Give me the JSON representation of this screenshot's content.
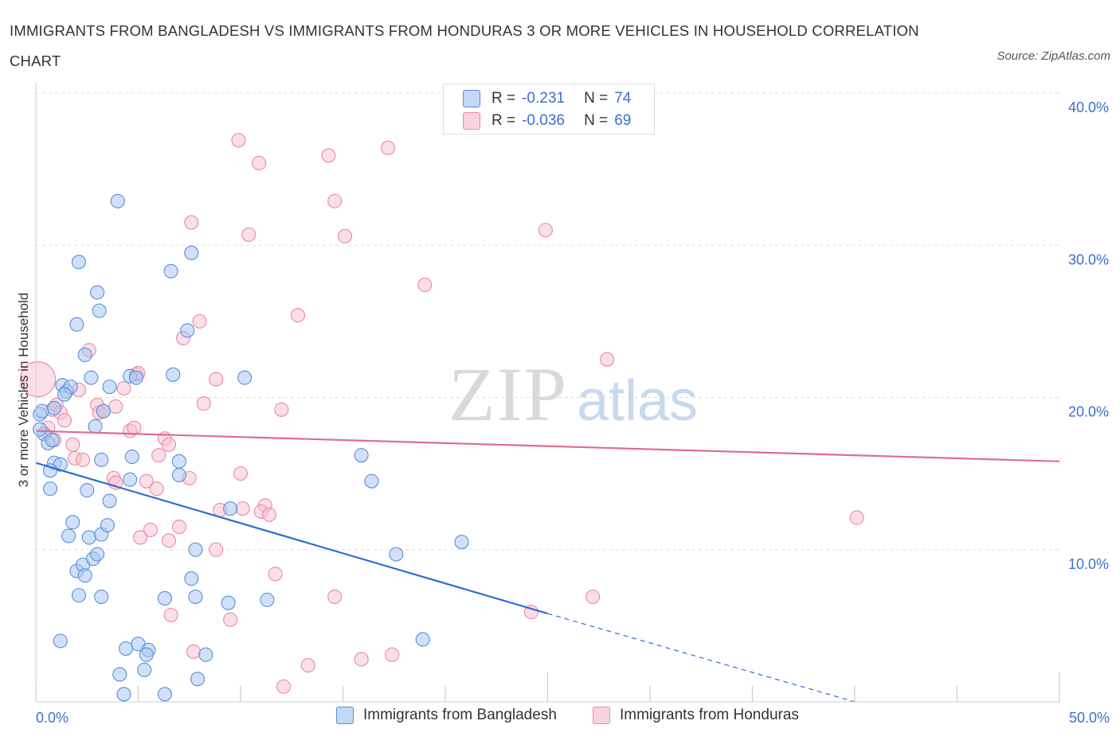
{
  "header": {
    "title": "IMMIGRANTS FROM BANGLADESH VS IMMIGRANTS FROM HONDURAS 3 OR MORE VEHICLES IN HOUSEHOLD CORRELATION CHART",
    "source": "Source: ZipAtlas.com"
  },
  "legend": {
    "r_label": "R =",
    "n_label": "N =",
    "bangladesh": {
      "r": "-0.231",
      "n": "74"
    },
    "honduras": {
      "r": "-0.036",
      "n": "69"
    }
  },
  "watermark": {
    "zip": "ZIP",
    "atlas": "atlas"
  },
  "colors": {
    "blue_fill": "#aac6f2",
    "blue_stroke": "#5b8fd9",
    "blue_line": "#2e6fd0",
    "pink_fill": "#f7c3d3",
    "pink_stroke": "#e88aa8",
    "pink_line": "#e06b95",
    "tick_text": "#3b6fd4",
    "grid": "#dddddd"
  },
  "chart_data": {
    "type": "scatter",
    "xlabel": "",
    "ylabel": "3 or more Vehicles in Household",
    "xlim": [
      0,
      50
    ],
    "ylim": [
      0,
      40
    ],
    "x_tick_labels": [
      "0.0%",
      "50.0%"
    ],
    "y_ticks": [
      10,
      20,
      30,
      40
    ],
    "y_tick_labels": [
      "10.0%",
      "20.0%",
      "30.0%",
      "40.0%"
    ],
    "grid": true,
    "series": [
      {
        "name": "Immigrants from Bangladesh",
        "color": "#5b8fd9",
        "trend": {
          "x0": 0,
          "y0": 15.7,
          "x1": 25,
          "y1": 5.8,
          "dashed_to_x": 40,
          "dashed_y": 0
        },
        "points": [
          [
            0.2,
            18.9
          ],
          [
            0.4,
            17.6
          ],
          [
            0.3,
            19.1
          ],
          [
            0.6,
            17.0
          ],
          [
            0.8,
            17.2
          ],
          [
            0.2,
            17.9
          ],
          [
            0.9,
            15.7
          ],
          [
            1.2,
            15.6
          ],
          [
            0.7,
            15.2
          ],
          [
            0.9,
            19.3
          ],
          [
            1.3,
            20.8
          ],
          [
            1.5,
            20.4
          ],
          [
            1.7,
            20.7
          ],
          [
            1.4,
            20.2
          ],
          [
            0.7,
            14.0
          ],
          [
            1.6,
            10.9
          ],
          [
            1.8,
            11.8
          ],
          [
            2.0,
            8.6
          ],
          [
            2.3,
            9.0
          ],
          [
            2.4,
            8.3
          ],
          [
            2.6,
            10.8
          ],
          [
            2.8,
            9.4
          ],
          [
            2.5,
            13.9
          ],
          [
            3.2,
            11.0
          ],
          [
            3.0,
            9.7
          ],
          [
            3.6,
            13.2
          ],
          [
            2.7,
            21.3
          ],
          [
            3.0,
            26.9
          ],
          [
            3.1,
            25.7
          ],
          [
            2.4,
            22.8
          ],
          [
            2.0,
            24.8
          ],
          [
            4.0,
            32.9
          ],
          [
            2.1,
            28.9
          ],
          [
            3.2,
            15.9
          ],
          [
            3.5,
            11.6
          ],
          [
            2.9,
            18.1
          ],
          [
            3.6,
            20.7
          ],
          [
            4.6,
            21.4
          ],
          [
            4.9,
            21.3
          ],
          [
            3.3,
            19.1
          ],
          [
            4.7,
            16.1
          ],
          [
            2.1,
            7.0
          ],
          [
            3.2,
            6.9
          ],
          [
            1.2,
            4.0
          ],
          [
            4.4,
            3.5
          ],
          [
            5.0,
            3.8
          ],
          [
            5.5,
            3.4
          ],
          [
            5.4,
            3.1
          ],
          [
            5.3,
            2.1
          ],
          [
            4.1,
            1.8
          ],
          [
            4.3,
            0.5
          ],
          [
            6.3,
            0.5
          ],
          [
            7.9,
            1.5
          ],
          [
            8.3,
            3.1
          ],
          [
            6.3,
            6.8
          ],
          [
            7.8,
            6.9
          ],
          [
            7.6,
            8.1
          ],
          [
            7.8,
            10.0
          ],
          [
            9.4,
            6.5
          ],
          [
            11.3,
            6.7
          ],
          [
            10.2,
            21.3
          ],
          [
            6.7,
            21.5
          ],
          [
            7.4,
            24.4
          ],
          [
            6.6,
            28.3
          ],
          [
            7.6,
            29.5
          ],
          [
            7.0,
            15.8
          ],
          [
            7.0,
            14.9
          ],
          [
            9.5,
            12.7
          ],
          [
            15.9,
            16.2
          ],
          [
            16.4,
            14.5
          ],
          [
            17.6,
            9.7
          ],
          [
            20.8,
            10.5
          ],
          [
            18.9,
            4.1
          ],
          [
            4.6,
            14.6
          ]
        ]
      },
      {
        "name": "Immigrants from Honduras",
        "color": "#e88aa8",
        "trend": {
          "x0": 0,
          "y0": 17.8,
          "x1": 50,
          "y1": 15.8
        },
        "points": [
          [
            0.1,
            21.2
          ],
          [
            0.8,
            19.2
          ],
          [
            1.0,
            19.5
          ],
          [
            1.2,
            19.0
          ],
          [
            1.4,
            18.5
          ],
          [
            0.6,
            18.0
          ],
          [
            0.9,
            17.2
          ],
          [
            1.8,
            16.9
          ],
          [
            1.9,
            16.0
          ],
          [
            2.3,
            15.9
          ],
          [
            2.1,
            20.5
          ],
          [
            2.6,
            23.1
          ],
          [
            3.0,
            19.5
          ],
          [
            3.1,
            19.0
          ],
          [
            3.3,
            19.1
          ],
          [
            3.9,
            19.4
          ],
          [
            4.3,
            20.6
          ],
          [
            4.9,
            21.5
          ],
          [
            5.0,
            21.6
          ],
          [
            4.6,
            17.8
          ],
          [
            4.8,
            18.0
          ],
          [
            3.8,
            14.7
          ],
          [
            3.9,
            14.4
          ],
          [
            5.4,
            14.5
          ],
          [
            5.9,
            14.0
          ],
          [
            6.0,
            16.2
          ],
          [
            6.3,
            17.3
          ],
          [
            6.5,
            16.9
          ],
          [
            7.5,
            14.7
          ],
          [
            5.6,
            11.3
          ],
          [
            5.1,
            10.8
          ],
          [
            6.5,
            10.6
          ],
          [
            7.0,
            11.5
          ],
          [
            8.8,
            10.0
          ],
          [
            9.0,
            12.6
          ],
          [
            10.0,
            15.0
          ],
          [
            10.1,
            12.7
          ],
          [
            11.2,
            12.9
          ],
          [
            11.0,
            12.5
          ],
          [
            11.4,
            12.3
          ],
          [
            7.2,
            23.9
          ],
          [
            8.0,
            25.0
          ],
          [
            8.8,
            21.2
          ],
          [
            8.2,
            19.6
          ],
          [
            7.6,
            31.5
          ],
          [
            9.9,
            36.9
          ],
          [
            10.4,
            30.7
          ],
          [
            10.9,
            35.4
          ],
          [
            12.0,
            19.2
          ],
          [
            12.8,
            25.4
          ],
          [
            14.3,
            35.9
          ],
          [
            14.6,
            32.9
          ],
          [
            15.1,
            30.6
          ],
          [
            17.2,
            36.4
          ],
          [
            19.0,
            27.4
          ],
          [
            24.9,
            31.0
          ],
          [
            27.9,
            22.5
          ],
          [
            6.6,
            5.7
          ],
          [
            7.7,
            3.3
          ],
          [
            9.5,
            5.4
          ],
          [
            11.7,
            8.4
          ],
          [
            12.1,
            1.0
          ],
          [
            13.3,
            2.4
          ],
          [
            14.6,
            6.9
          ],
          [
            15.9,
            2.8
          ],
          [
            17.4,
            3.1
          ],
          [
            24.2,
            5.9
          ],
          [
            27.2,
            6.9
          ],
          [
            40.1,
            12.1
          ]
        ]
      }
    ]
  },
  "axes": {
    "ylabel": "3 or more Vehicles in Household"
  }
}
